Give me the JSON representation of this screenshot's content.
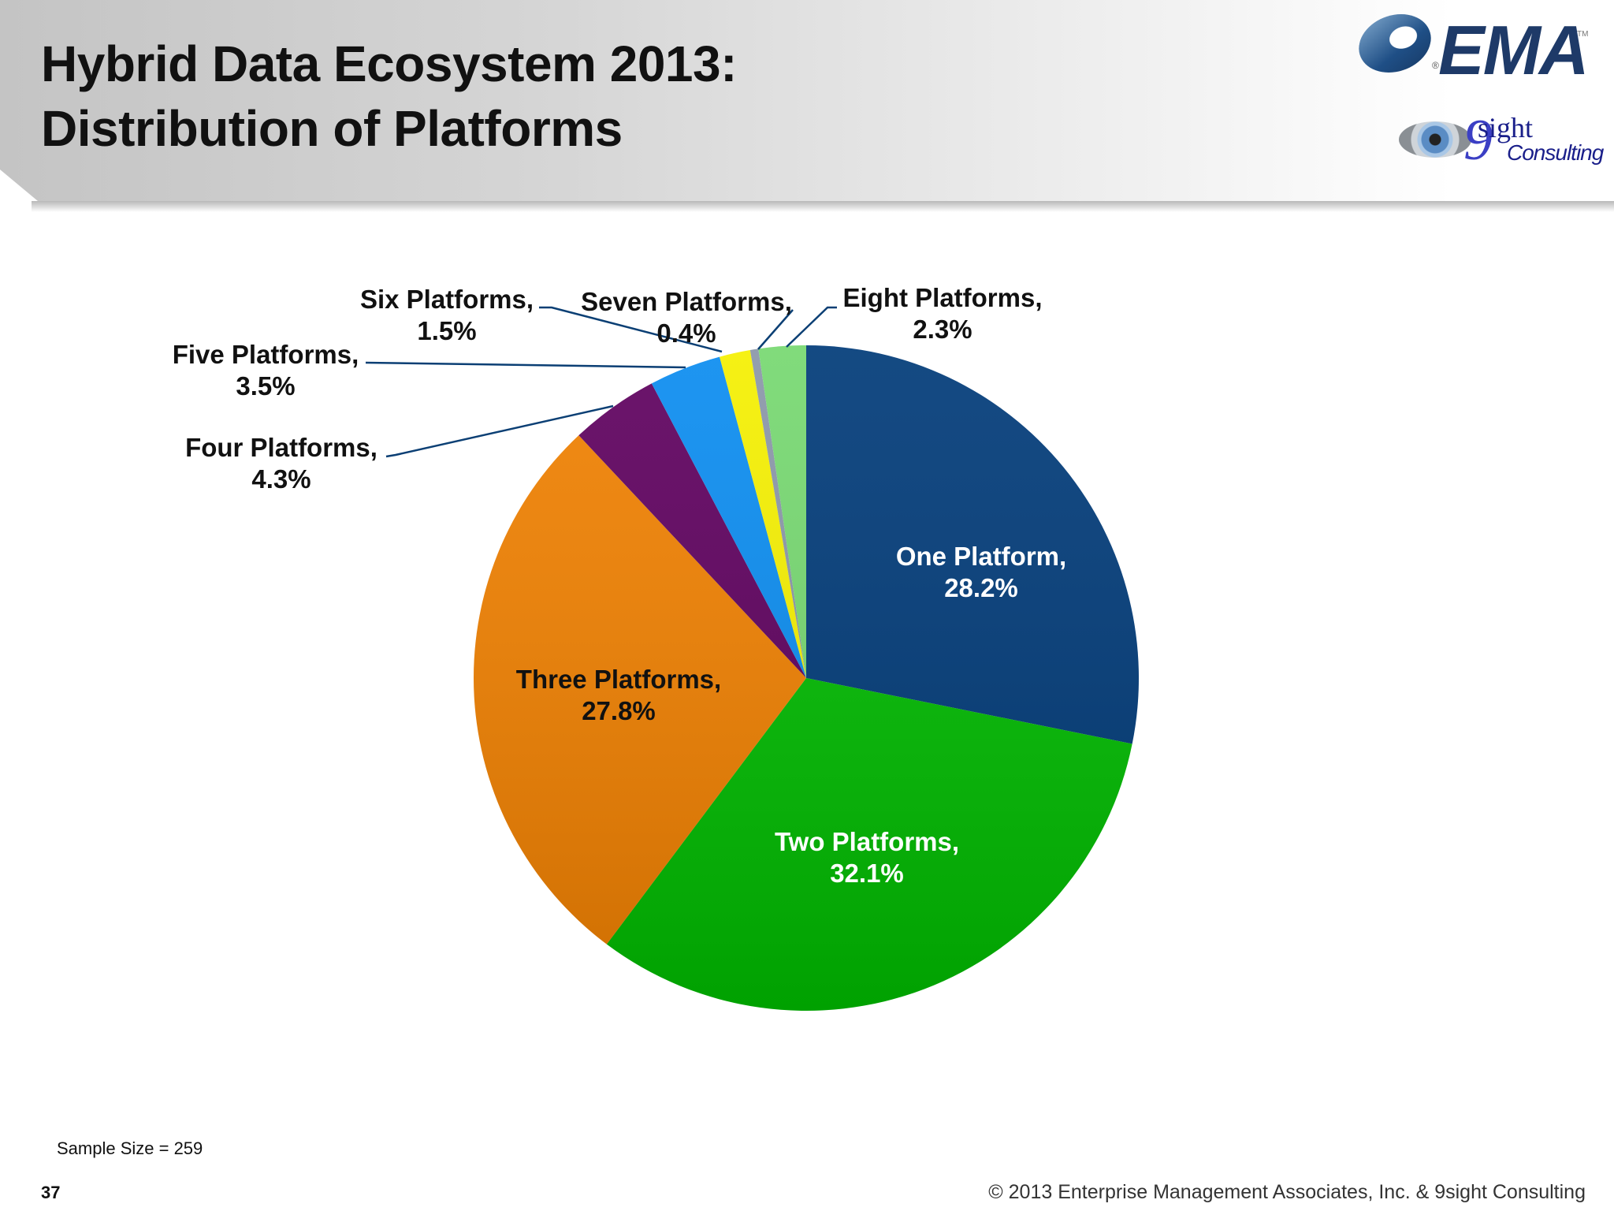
{
  "header": {
    "title_line1": "Hybrid Data Ecosystem 2013:",
    "title_line2": "Distribution of Platforms",
    "logos": {
      "ema": {
        "text": "EMA",
        "tm": "TM",
        "reg": "®"
      },
      "ninesight": {
        "nine": "9",
        "sight": "sight",
        "consulting": "Consulting"
      }
    }
  },
  "chart_data": {
    "type": "pie",
    "title": "Hybrid Data Ecosystem 2013: Distribution of Platforms",
    "categories": [
      "One Platform",
      "Two Platforms",
      "Three Platforms",
      "Four Platforms",
      "Five Platforms",
      "Six Platforms",
      "Seven Platforms",
      "Eight Platforms"
    ],
    "values": [
      28.2,
      32.1,
      27.8,
      4.3,
      3.5,
      1.5,
      0.4,
      2.3
    ],
    "unit": "%",
    "colors": [
      "#003a78",
      "#00bb00",
      "#f08000",
      "#5e005e",
      "#0a8cf0",
      "#f5f000",
      "#8a96a8",
      "#76d870"
    ],
    "start_angle": "12 o'clock, clockwise",
    "legend": "none (data labels)",
    "labels": [
      {
        "name": "One Platform,",
        "value": "28.2%"
      },
      {
        "name": "Two Platforms,",
        "value": "32.1%"
      },
      {
        "name": "Three Platforms,",
        "value": "27.8%"
      },
      {
        "name": "Four Platforms,",
        "value": "4.3%"
      },
      {
        "name": "Five Platforms,",
        "value": "3.5%"
      },
      {
        "name": "Six Platforms,",
        "value": "1.5%"
      },
      {
        "name": "Seven Platforms,",
        "value": "0.4%"
      },
      {
        "name": "Eight Platforms,",
        "value": "2.3%"
      }
    ]
  },
  "footer": {
    "sample_size": "Sample Size = 259",
    "page_number": "37",
    "copyright": "© 2013 Enterprise Management Associates, Inc. & 9sight Consulting"
  }
}
